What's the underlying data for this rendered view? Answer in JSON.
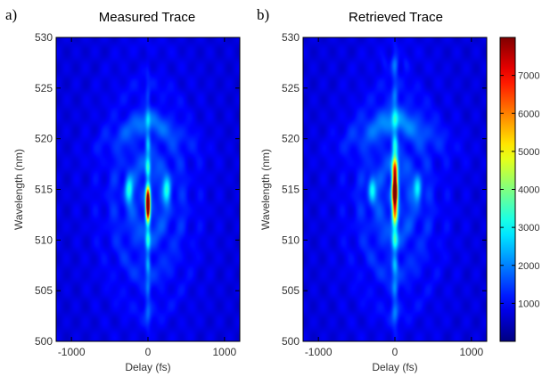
{
  "panels": [
    {
      "letter": "a)",
      "title": "Measured Trace",
      "xlabel": "Delay (fs)",
      "ylabel": "Wavelength (nm)",
      "xticks": [
        "-1000",
        "0",
        "1000"
      ],
      "yticks": [
        "500",
        "505",
        "510",
        "515",
        "520",
        "525",
        "530"
      ]
    },
    {
      "letter": "b)",
      "title": "Retrieved Trace",
      "xlabel": "Delay (fs)",
      "ylabel": "Wavelength (nm)",
      "xticks": [
        "-1000",
        "0",
        "1000"
      ],
      "yticks": [
        "500",
        "505",
        "510",
        "515",
        "520",
        "525",
        "530"
      ]
    }
  ],
  "colorbar": {
    "ticks": [
      "1000",
      "2000",
      "3000",
      "4000",
      "5000",
      "6000",
      "7000"
    ],
    "colormap": "jet"
  },
  "chart_data": [
    {
      "type": "heatmap",
      "title": "Measured Trace",
      "xlabel": "Delay (fs)",
      "ylabel": "Wavelength (nm)",
      "xlim": [
        -1200,
        1200
      ],
      "ylim": [
        500,
        530
      ],
      "colorbar_range": [
        0,
        8000
      ],
      "features": {
        "peak_delay_fs": 0,
        "peak_wavelength_nm": 513.5,
        "peak_value": 7800,
        "central_streak_wavelength_range_nm": [
          506,
          522
        ],
        "side_lobe_delays_fs": [
          -250,
          250
        ],
        "side_lobe_wavelength_nm": 515
      }
    },
    {
      "type": "heatmap",
      "title": "Retrieved Trace",
      "xlabel": "Delay (fs)",
      "ylabel": "Wavelength (nm)",
      "xlim": [
        -1200,
        1200
      ],
      "ylim": [
        500,
        530
      ],
      "colorbar_range": [
        0,
        8000
      ],
      "features": {
        "peak_delay_fs": 0,
        "peak_wavelength_nm": 515,
        "peak_value": 7000,
        "central_streak_wavelength_range_nm": [
          505,
          524
        ],
        "side_lobe_delays_fs": [
          -300,
          300
        ],
        "side_lobe_wavelength_nm": 515,
        "top_band_wavelength_nm": 527.5
      }
    }
  ]
}
